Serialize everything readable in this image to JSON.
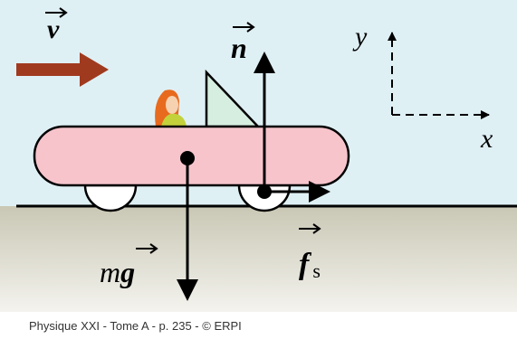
{
  "labels": {
    "velocity": "v",
    "normal": "n",
    "axis_y": "y",
    "axis_x": "x",
    "weight_m": "m",
    "weight_g": "g",
    "friction": "f",
    "friction_sub": "s"
  },
  "caption": "Physique XXI - Tome A - p. 235 - © ERPI"
}
